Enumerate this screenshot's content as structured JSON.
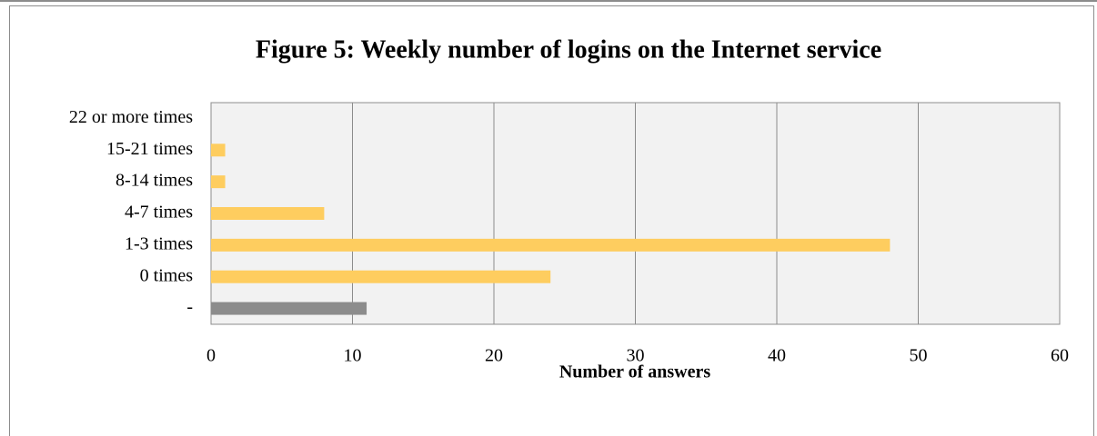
{
  "chart_data": {
    "type": "bar",
    "orientation": "horizontal",
    "title": "Figure 5: Weekly number of logins on the Internet service",
    "x_label": "Number of answers",
    "categories": [
      "22 or more times",
      "15-21 times",
      "8-14 times",
      "4-7 times",
      "1-3 times",
      "0 times",
      "-"
    ],
    "values": [
      0,
      1,
      1,
      8,
      48,
      24,
      11
    ],
    "colors": [
      "#fecd5f",
      "#fecd5f",
      "#fecd5f",
      "#fecd5f",
      "#fecd5f",
      "#fecd5f",
      "#8c8c8c"
    ],
    "xlim": [
      0,
      60
    ],
    "xticks": [
      0,
      10,
      20,
      30,
      40,
      50,
      60
    ],
    "grid": true
  }
}
